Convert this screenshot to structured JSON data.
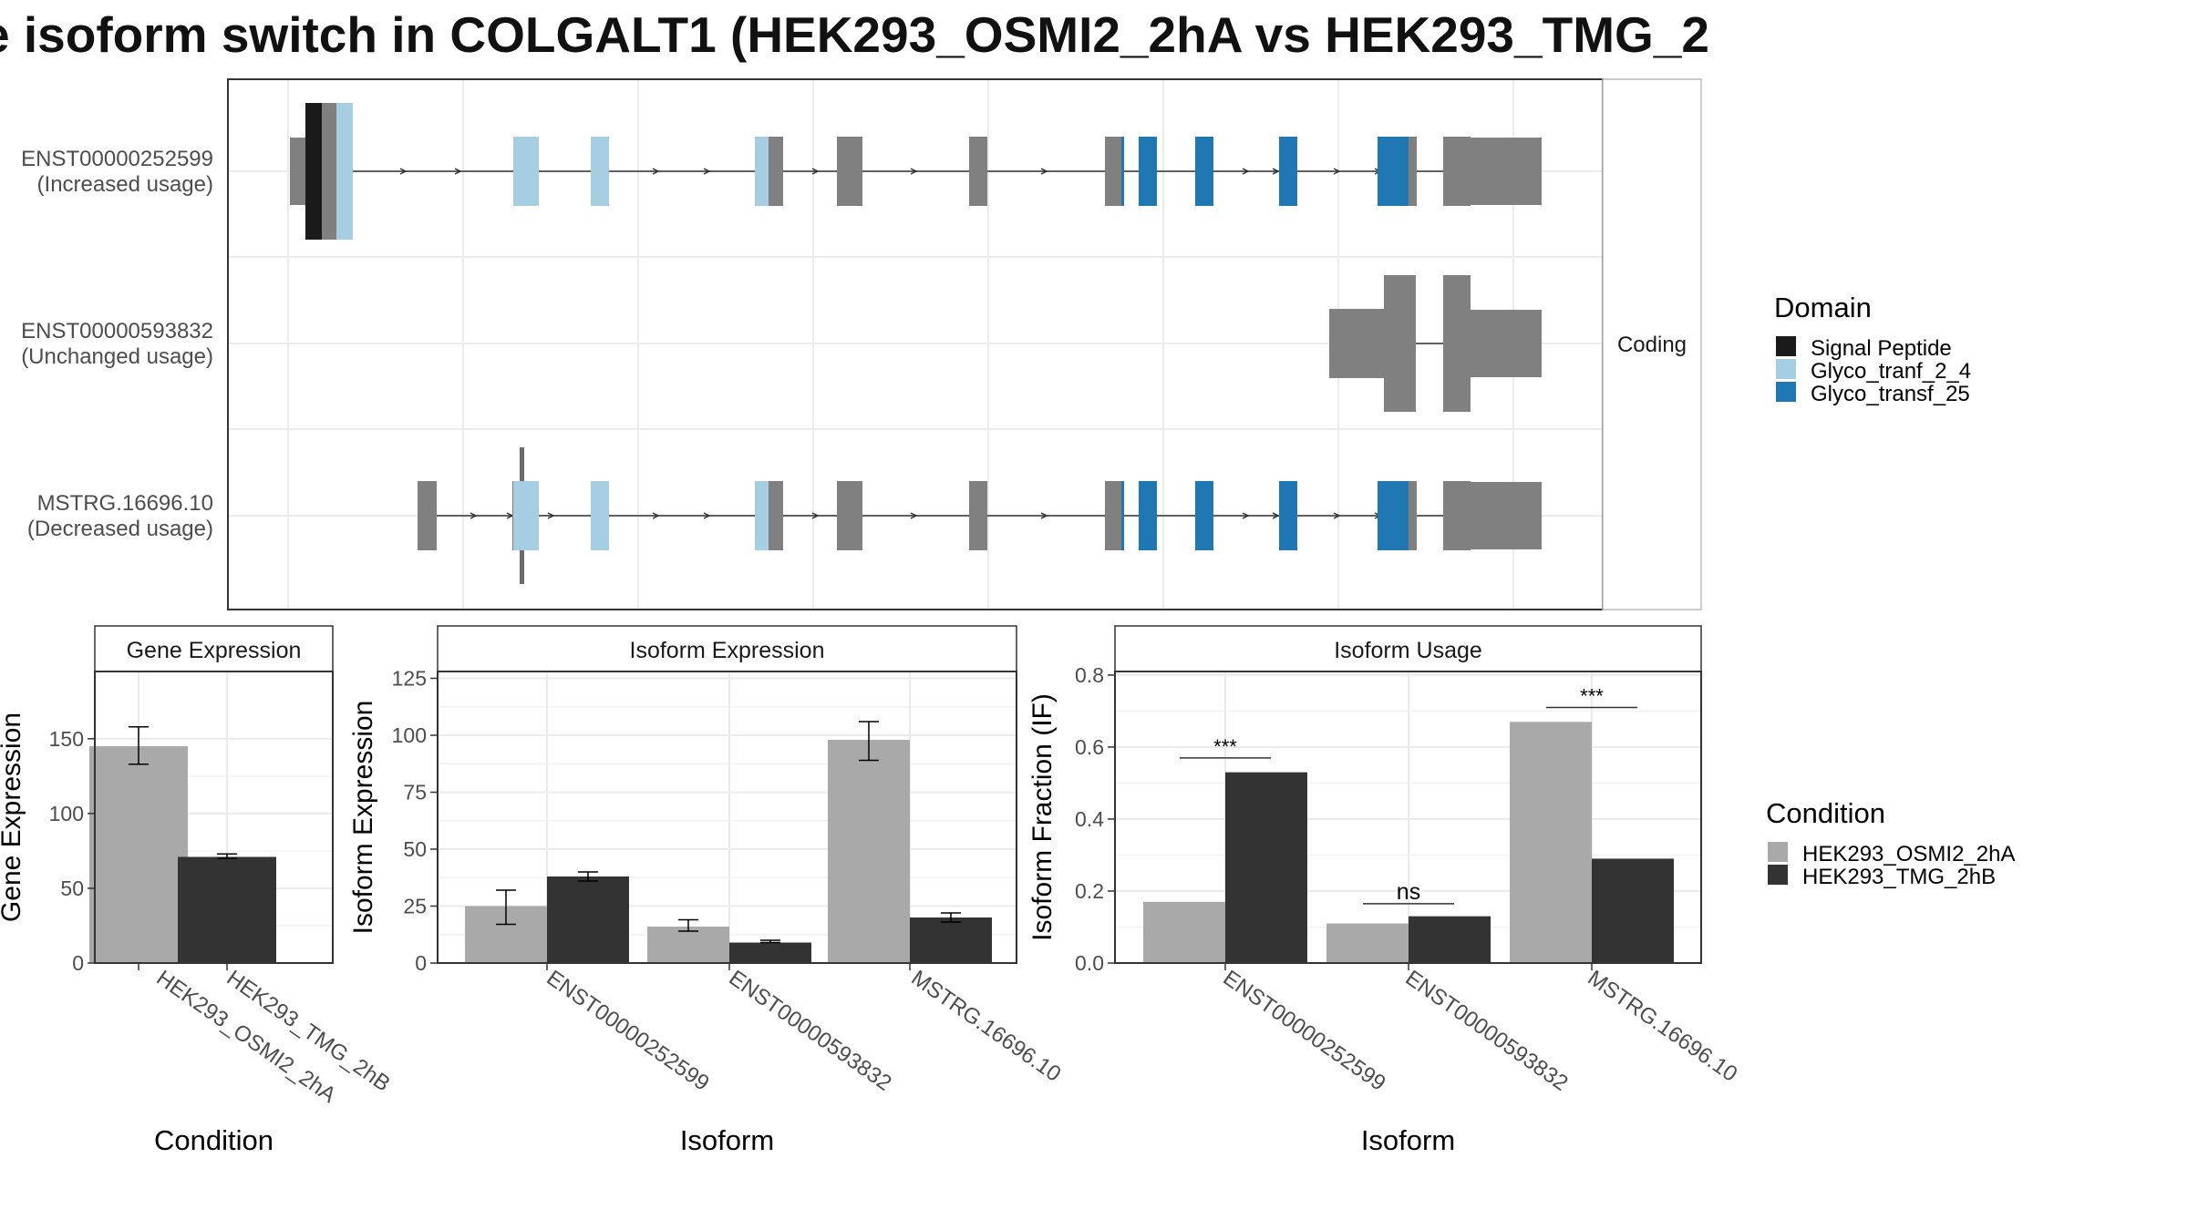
{
  "title": "e isoform switch in COLGALT1 (HEK293_OSMI2_2hA vs HEK293_TMG_2",
  "structure": {
    "strip_label": "Coding",
    "legend_title": "Domain",
    "domains": [
      {
        "name": "Signal Peptide",
        "color": "#1a1a1a"
      },
      {
        "name": "Glyco_tranf_2_4",
        "color": "#a6cee3"
      },
      {
        "name": "Glyco_transf_25",
        "color": "#1f78b4"
      }
    ],
    "exon_color": "#808080",
    "isoforms": [
      {
        "id": "ENST00000252599",
        "note": "(Increased usage)"
      },
      {
        "id": "ENST00000593832",
        "note": "(Unchanged usage)"
      },
      {
        "id": "MSTRG.16696.10",
        "note": "(Decreased usage)"
      }
    ]
  },
  "chart_data": [
    {
      "type": "bar",
      "title": "Gene Expression",
      "xlabel": "Condition",
      "ylabel": "Gene Expression",
      "categories": [
        "HEK293_OSMI2_2hA",
        "HEK293_TMG_2hB"
      ],
      "values": [
        145,
        71
      ],
      "errors": [
        [
          133,
          158
        ],
        [
          70,
          73
        ]
      ],
      "colors": [
        "#a9a9a9",
        "#333333"
      ],
      "ylim": [
        0,
        195
      ],
      "yticks": [
        0,
        50,
        100,
        150
      ]
    },
    {
      "type": "bar",
      "title": "Isoform Expression",
      "xlabel": "Isoform",
      "ylabel": "Isoform Expression",
      "categories": [
        "ENST00000252599",
        "ENST00000593832",
        "MSTRG.16696.10"
      ],
      "series": [
        {
          "name": "HEK293_OSMI2_2hA",
          "color": "#a9a9a9",
          "values": [
            25,
            16,
            98
          ],
          "errors": [
            [
              17,
              32
            ],
            [
              14,
              19
            ],
            [
              89,
              106
            ]
          ]
        },
        {
          "name": "HEK293_TMG_2hB",
          "color": "#333333",
          "values": [
            38,
            9,
            20
          ],
          "errors": [
            [
              36,
              40
            ],
            [
              9,
              10
            ],
            [
              18,
              22
            ]
          ]
        }
      ],
      "ylim": [
        0,
        128
      ],
      "yticks": [
        0,
        25,
        50,
        75,
        100,
        125
      ]
    },
    {
      "type": "bar",
      "title": "Isoform Usage",
      "xlabel": "Isoform",
      "ylabel": "Isoform Fraction (IF)",
      "categories": [
        "ENST00000252599",
        "ENST00000593832",
        "MSTRG.16696.10"
      ],
      "series": [
        {
          "name": "HEK293_OSMI2_2hA",
          "color": "#a9a9a9",
          "values": [
            0.17,
            0.11,
            0.67
          ]
        },
        {
          "name": "HEK293_TMG_2hB",
          "color": "#333333",
          "values": [
            0.53,
            0.13,
            0.29
          ]
        }
      ],
      "significance": [
        {
          "label": "***",
          "y": 0.57
        },
        {
          "label": "ns",
          "y": 0.165
        },
        {
          "label": "***",
          "y": 0.71
        }
      ],
      "ylim": [
        0,
        0.81
      ],
      "yticks": [
        "0.0",
        "0.2",
        "0.4",
        "0.6",
        "0.8"
      ]
    }
  ],
  "condition_legend": {
    "title": "Condition",
    "items": [
      {
        "name": "HEK293_OSMI2_2hA",
        "color": "#a9a9a9"
      },
      {
        "name": "HEK293_TMG_2hB",
        "color": "#333333"
      }
    ]
  }
}
